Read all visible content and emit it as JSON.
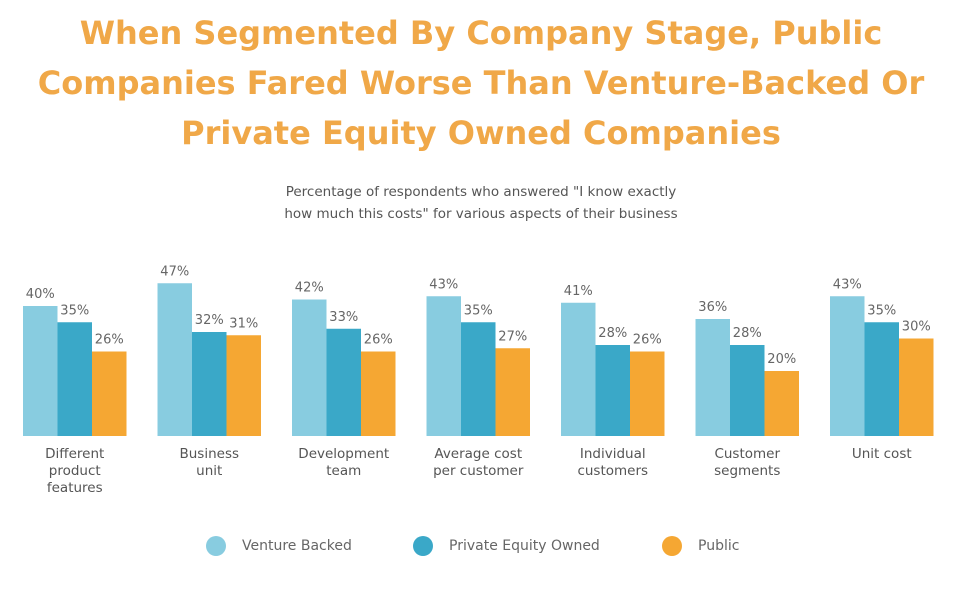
{
  "chart_data": {
    "type": "bar",
    "title_lines": [
      "When Segmented By Company Stage, Public",
      "Companies Fared Worse Than Venture-Backed Or",
      "Private Equity Owned Companies"
    ],
    "subtitle_lines": [
      "Percentage of respondents who answered \"I know exactly",
      "how much this costs\" for various aspects of their business"
    ],
    "categories": [
      [
        "Different",
        "product",
        "features"
      ],
      [
        "Business",
        "unit"
      ],
      [
        "Development",
        "team"
      ],
      [
        "Average cost",
        "per customer"
      ],
      [
        "Individual",
        "customers"
      ],
      [
        "Customer",
        "segments"
      ],
      [
        "Unit cost"
      ]
    ],
    "series": [
      {
        "name": "Venture Backed",
        "color": "#88CCE0",
        "values": [
          40,
          47,
          42,
          43,
          41,
          36,
          43
        ]
      },
      {
        "name": "Private Equity Owned",
        "color": "#3AA8C8",
        "values": [
          35,
          32,
          33,
          35,
          28,
          28,
          35
        ]
      },
      {
        "name": "Public",
        "color": "#F5A733",
        "values": [
          26,
          31,
          26,
          27,
          26,
          20,
          30
        ]
      }
    ],
    "value_suffix": "%",
    "xlabel": "",
    "ylabel": "",
    "ylim": [
      0,
      50
    ],
    "grid": false,
    "legend_position": "bottom"
  }
}
